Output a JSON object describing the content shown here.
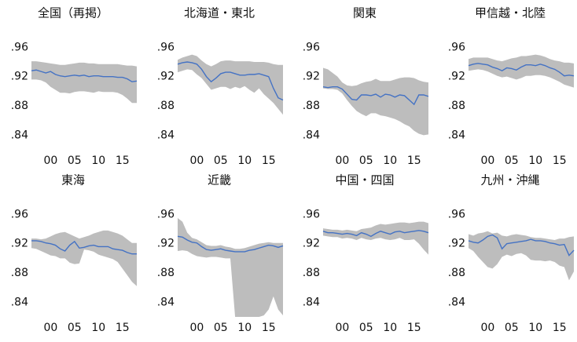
{
  "chart_data": [
    {
      "type": "line",
      "title": "全国（再掲）",
      "color": "#4472c4",
      "band_color": "#bdbdbd",
      "x": [
        1996,
        1997,
        1998,
        1999,
        2000,
        2001,
        2002,
        2003,
        2004,
        2005,
        2006,
        2007,
        2008,
        2009,
        2010,
        2011,
        2012,
        2013,
        2014,
        2015,
        2016,
        2017,
        2018
      ],
      "values": [
        0.928,
        0.929,
        0.927,
        0.925,
        0.927,
        0.923,
        0.921,
        0.92,
        0.921,
        0.922,
        0.921,
        0.922,
        0.92,
        0.921,
        0.921,
        0.92,
        0.92,
        0.92,
        0.919,
        0.919,
        0.917,
        0.913,
        0.914
      ],
      "band_high": [
        0.941,
        0.941,
        0.94,
        0.939,
        0.938,
        0.937,
        0.936,
        0.936,
        0.937,
        0.938,
        0.939,
        0.939,
        0.938,
        0.938,
        0.937,
        0.937,
        0.937,
        0.937,
        0.937,
        0.936,
        0.935,
        0.935,
        0.934
      ],
      "band_low": [
        0.916,
        0.916,
        0.915,
        0.912,
        0.906,
        0.902,
        0.898,
        0.898,
        0.897,
        0.899,
        0.9,
        0.9,
        0.899,
        0.898,
        0.9,
        0.899,
        0.899,
        0.899,
        0.898,
        0.895,
        0.89,
        0.884,
        0.884
      ],
      "xlim": [
        1996,
        2018
      ],
      "xticks": [
        {
          "value": 2000,
          "label": "00"
        },
        {
          "value": 2005,
          "label": "05"
        },
        {
          "value": 2010,
          "label": "10"
        },
        {
          "value": 2015,
          "label": "15"
        }
      ],
      "ylim": [
        0.82,
        0.97
      ],
      "yticks": [
        {
          "value": 0.84,
          "label": ".84"
        },
        {
          "value": 0.88,
          "label": ".88"
        },
        {
          "value": 0.92,
          "label": ".92"
        },
        {
          "value": 0.96,
          "label": ".96"
        }
      ]
    },
    {
      "type": "line",
      "title": "北海道・東北",
      "color": "#4472c4",
      "band_color": "#bdbdbd",
      "x": [
        1996,
        1997,
        1998,
        1999,
        2000,
        2001,
        2002,
        2003,
        2004,
        2005,
        2006,
        2007,
        2008,
        2009,
        2010,
        2011,
        2012,
        2013,
        2014,
        2015,
        2016,
        2017,
        2018
      ],
      "values": [
        0.937,
        0.939,
        0.94,
        0.939,
        0.937,
        0.93,
        0.92,
        0.913,
        0.918,
        0.924,
        0.926,
        0.926,
        0.924,
        0.922,
        0.922,
        0.923,
        0.923,
        0.924,
        0.922,
        0.92,
        0.904,
        0.891,
        0.888
      ],
      "band_high": [
        0.943,
        0.946,
        0.948,
        0.95,
        0.948,
        0.942,
        0.937,
        0.934,
        0.937,
        0.941,
        0.942,
        0.942,
        0.941,
        0.941,
        0.941,
        0.941,
        0.94,
        0.94,
        0.94,
        0.939,
        0.937,
        0.936,
        0.936
      ],
      "band_low": [
        0.926,
        0.928,
        0.93,
        0.929,
        0.923,
        0.918,
        0.91,
        0.902,
        0.904,
        0.906,
        0.906,
        0.903,
        0.906,
        0.904,
        0.907,
        0.902,
        0.898,
        0.904,
        0.896,
        0.89,
        0.884,
        0.876,
        0.868
      ],
      "xlim": [
        1996,
        2018
      ],
      "xticks": [
        {
          "value": 2000,
          "label": "00"
        },
        {
          "value": 2005,
          "label": "05"
        },
        {
          "value": 2010,
          "label": "10"
        },
        {
          "value": 2015,
          "label": "15"
        }
      ],
      "ylim": [
        0.82,
        0.97
      ],
      "yticks": [
        {
          "value": 0.84,
          "label": ".84"
        },
        {
          "value": 0.88,
          "label": ".88"
        },
        {
          "value": 0.92,
          "label": ".92"
        },
        {
          "value": 0.96,
          "label": ".96"
        }
      ]
    },
    {
      "type": "line",
      "title": "関東",
      "color": "#4472c4",
      "band_color": "#bdbdbd",
      "x": [
        1996,
        1997,
        1998,
        1999,
        2000,
        2001,
        2002,
        2003,
        2004,
        2005,
        2006,
        2007,
        2008,
        2009,
        2010,
        2011,
        2012,
        2013,
        2014,
        2015,
        2016,
        2017,
        2018
      ],
      "values": [
        0.906,
        0.905,
        0.906,
        0.906,
        0.903,
        0.896,
        0.889,
        0.888,
        0.895,
        0.895,
        0.894,
        0.896,
        0.892,
        0.896,
        0.895,
        0.892,
        0.895,
        0.894,
        0.888,
        0.882,
        0.895,
        0.895,
        0.893
      ],
      "band_high": [
        0.932,
        0.93,
        0.925,
        0.92,
        0.912,
        0.908,
        0.907,
        0.908,
        0.911,
        0.913,
        0.914,
        0.917,
        0.914,
        0.914,
        0.914,
        0.916,
        0.918,
        0.919,
        0.919,
        0.918,
        0.915,
        0.913,
        0.912
      ],
      "band_low": [
        0.904,
        0.903,
        0.903,
        0.902,
        0.897,
        0.888,
        0.88,
        0.873,
        0.869,
        0.866,
        0.87,
        0.87,
        0.867,
        0.866,
        0.864,
        0.862,
        0.859,
        0.855,
        0.852,
        0.846,
        0.842,
        0.84,
        0.841
      ],
      "xlim": [
        1996,
        2018
      ],
      "xticks": [
        {
          "value": 2000,
          "label": "00"
        },
        {
          "value": 2005,
          "label": "05"
        },
        {
          "value": 2010,
          "label": "10"
        },
        {
          "value": 2015,
          "label": "15"
        }
      ],
      "ylim": [
        0.82,
        0.97
      ],
      "yticks": [
        {
          "value": 0.84,
          "label": ".84"
        },
        {
          "value": 0.88,
          "label": ".88"
        },
        {
          "value": 0.92,
          "label": ".92"
        },
        {
          "value": 0.96,
          "label": ".96"
        }
      ]
    },
    {
      "type": "line",
      "title": "甲信越・北陸",
      "color": "#4472c4",
      "band_color": "#bdbdbd",
      "x": [
        1996,
        1997,
        1998,
        1999,
        2000,
        2001,
        2002,
        2003,
        2004,
        2005,
        2006,
        2007,
        2008,
        2009,
        2010,
        2011,
        2012,
        2013,
        2014,
        2015,
        2016,
        2017,
        2018
      ],
      "values": [
        0.935,
        0.937,
        0.938,
        0.937,
        0.936,
        0.933,
        0.931,
        0.928,
        0.932,
        0.931,
        0.929,
        0.933,
        0.936,
        0.936,
        0.935,
        0.937,
        0.935,
        0.932,
        0.93,
        0.926,
        0.921,
        0.922,
        0.921
      ],
      "band_high": [
        0.944,
        0.946,
        0.946,
        0.946,
        0.946,
        0.944,
        0.942,
        0.941,
        0.943,
        0.945,
        0.946,
        0.948,
        0.948,
        0.949,
        0.95,
        0.949,
        0.947,
        0.944,
        0.942,
        0.941,
        0.939,
        0.939,
        0.938
      ],
      "band_low": [
        0.928,
        0.929,
        0.93,
        0.929,
        0.927,
        0.924,
        0.921,
        0.919,
        0.92,
        0.918,
        0.916,
        0.918,
        0.921,
        0.921,
        0.922,
        0.922,
        0.921,
        0.919,
        0.916,
        0.913,
        0.909,
        0.907,
        0.905
      ],
      "xlim": [
        1996,
        2018
      ],
      "xticks": [
        {
          "value": 2000,
          "label": "00"
        },
        {
          "value": 2005,
          "label": "05"
        },
        {
          "value": 2010,
          "label": "10"
        },
        {
          "value": 2015,
          "label": "15"
        }
      ],
      "ylim": [
        0.82,
        0.97
      ],
      "yticks": [
        {
          "value": 0.84,
          "label": ".84"
        },
        {
          "value": 0.88,
          "label": ".88"
        },
        {
          "value": 0.92,
          "label": ".92"
        },
        {
          "value": 0.96,
          "label": ".96"
        }
      ]
    },
    {
      "type": "line",
      "title": "東海",
      "color": "#4472c4",
      "band_color": "#bdbdbd",
      "x": [
        1996,
        1997,
        1998,
        1999,
        2000,
        2001,
        2002,
        2003,
        2004,
        2005,
        2006,
        2007,
        2008,
        2009,
        2010,
        2011,
        2012,
        2013,
        2014,
        2015,
        2016,
        2017,
        2018
      ],
      "values": [
        0.924,
        0.924,
        0.923,
        0.921,
        0.92,
        0.918,
        0.913,
        0.91,
        0.918,
        0.923,
        0.914,
        0.915,
        0.917,
        0.918,
        0.916,
        0.916,
        0.916,
        0.913,
        0.912,
        0.911,
        0.908,
        0.906,
        0.906
      ],
      "band_high": [
        0.927,
        0.927,
        0.926,
        0.927,
        0.93,
        0.933,
        0.935,
        0.936,
        0.933,
        0.93,
        0.927,
        0.929,
        0.931,
        0.934,
        0.936,
        0.938,
        0.938,
        0.936,
        0.934,
        0.931,
        0.926,
        0.921,
        0.921
      ],
      "band_low": [
        0.914,
        0.913,
        0.91,
        0.907,
        0.904,
        0.903,
        0.9,
        0.9,
        0.894,
        0.892,
        0.893,
        0.912,
        0.911,
        0.909,
        0.905,
        0.903,
        0.901,
        0.899,
        0.895,
        0.886,
        0.877,
        0.868,
        0.862
      ],
      "xlim": [
        1996,
        2018
      ],
      "xticks": [
        {
          "value": 2000,
          "label": "00"
        },
        {
          "value": 2005,
          "label": "05"
        },
        {
          "value": 2010,
          "label": "10"
        },
        {
          "value": 2015,
          "label": "15"
        }
      ],
      "ylim": [
        0.82,
        0.97
      ],
      "yticks": [
        {
          "value": 0.84,
          "label": ".84"
        },
        {
          "value": 0.88,
          "label": ".88"
        },
        {
          "value": 0.92,
          "label": ".92"
        },
        {
          "value": 0.96,
          "label": ".96"
        }
      ]
    },
    {
      "type": "line",
      "title": "近畿",
      "color": "#4472c4",
      "band_color": "#bdbdbd",
      "x": [
        1996,
        1997,
        1998,
        1999,
        2000,
        2001,
        2002,
        2003,
        2004,
        2005,
        2006,
        2007,
        2008,
        2009,
        2010,
        2011,
        2012,
        2013,
        2014,
        2015,
        2016,
        2017,
        2018
      ],
      "values": [
        0.93,
        0.929,
        0.925,
        0.922,
        0.921,
        0.916,
        0.912,
        0.911,
        0.912,
        0.913,
        0.911,
        0.91,
        0.909,
        0.909,
        0.909,
        0.911,
        0.912,
        0.914,
        0.916,
        0.918,
        0.917,
        0.915,
        0.917
      ],
      "band_high": [
        0.955,
        0.95,
        0.935,
        0.928,
        0.926,
        0.922,
        0.918,
        0.917,
        0.917,
        0.918,
        0.916,
        0.915,
        0.913,
        0.913,
        0.914,
        0.916,
        0.918,
        0.92,
        0.921,
        0.922,
        0.921,
        0.921,
        0.921
      ],
      "band_low": [
        0.91,
        0.911,
        0.91,
        0.906,
        0.903,
        0.902,
        0.901,
        0.902,
        0.902,
        0.901,
        0.9,
        0.9,
        0.82,
        0.82,
        0.82,
        0.82,
        0.82,
        0.82,
        0.822,
        0.83,
        0.848,
        0.83,
        0.822
      ],
      "xlim": [
        1996,
        2018
      ],
      "xticks": [
        {
          "value": 2000,
          "label": "00"
        },
        {
          "value": 2005,
          "label": "05"
        },
        {
          "value": 2010,
          "label": "10"
        },
        {
          "value": 2015,
          "label": "15"
        }
      ],
      "ylim": [
        0.82,
        0.97
      ],
      "yticks": [
        {
          "value": 0.84,
          "label": ".84"
        },
        {
          "value": 0.88,
          "label": ".88"
        },
        {
          "value": 0.92,
          "label": ".92"
        },
        {
          "value": 0.96,
          "label": ".96"
        }
      ]
    },
    {
      "type": "line",
      "title": "中国・四国",
      "color": "#4472c4",
      "band_color": "#bdbdbd",
      "x": [
        1996,
        1997,
        1998,
        1999,
        2000,
        2001,
        2002,
        2003,
        2004,
        2005,
        2006,
        2007,
        2008,
        2009,
        2010,
        2011,
        2012,
        2013,
        2014,
        2015,
        2016,
        2017,
        2018
      ],
      "values": [
        0.937,
        0.935,
        0.935,
        0.934,
        0.933,
        0.934,
        0.933,
        0.931,
        0.935,
        0.933,
        0.93,
        0.934,
        0.937,
        0.935,
        0.933,
        0.936,
        0.937,
        0.935,
        0.936,
        0.937,
        0.938,
        0.937,
        0.935
      ],
      "band_high": [
        0.941,
        0.94,
        0.939,
        0.939,
        0.938,
        0.939,
        0.938,
        0.937,
        0.94,
        0.941,
        0.942,
        0.945,
        0.947,
        0.946,
        0.947,
        0.948,
        0.949,
        0.949,
        0.948,
        0.949,
        0.95,
        0.95,
        0.948
      ],
      "band_low": [
        0.931,
        0.93,
        0.929,
        0.929,
        0.927,
        0.928,
        0.927,
        0.925,
        0.928,
        0.926,
        0.925,
        0.927,
        0.928,
        0.926,
        0.925,
        0.926,
        0.928,
        0.925,
        0.925,
        0.926,
        0.92,
        0.912,
        0.905
      ],
      "xlim": [
        1996,
        2018
      ],
      "xticks": [
        {
          "value": 2000,
          "label": "00"
        },
        {
          "value": 2005,
          "label": "05"
        },
        {
          "value": 2010,
          "label": "10"
        },
        {
          "value": 2015,
          "label": "15"
        }
      ],
      "ylim": [
        0.82,
        0.97
      ],
      "yticks": [
        {
          "value": 0.84,
          "label": ".84"
        },
        {
          "value": 0.88,
          "label": ".88"
        },
        {
          "value": 0.92,
          "label": ".92"
        },
        {
          "value": 0.96,
          "label": ".96"
        }
      ]
    },
    {
      "type": "line",
      "title": "九州・沖縄",
      "color": "#4472c4",
      "band_color": "#bdbdbd",
      "x": [
        1996,
        1997,
        1998,
        1999,
        2000,
        2001,
        2002,
        2003,
        2004,
        2005,
        2006,
        2007,
        2008,
        2009,
        2010,
        2011,
        2012,
        2013,
        2014,
        2015,
        2016,
        2017,
        2018
      ],
      "values": [
        0.924,
        0.922,
        0.921,
        0.925,
        0.93,
        0.932,
        0.928,
        0.913,
        0.92,
        0.921,
        0.922,
        0.923,
        0.924,
        0.926,
        0.924,
        0.924,
        0.923,
        0.921,
        0.92,
        0.918,
        0.919,
        0.904,
        0.911
      ],
      "band_high": [
        0.933,
        0.931,
        0.934,
        0.935,
        0.937,
        0.934,
        0.935,
        0.931,
        0.93,
        0.932,
        0.933,
        0.932,
        0.931,
        0.929,
        0.928,
        0.928,
        0.927,
        0.926,
        0.925,
        0.927,
        0.927,
        0.929,
        0.93
      ],
      "band_low": [
        0.914,
        0.91,
        0.902,
        0.895,
        0.888,
        0.886,
        0.892,
        0.902,
        0.905,
        0.903,
        0.906,
        0.907,
        0.904,
        0.898,
        0.897,
        0.897,
        0.896,
        0.897,
        0.895,
        0.89,
        0.888,
        0.87,
        0.882
      ],
      "xlim": [
        1996,
        2018
      ],
      "xticks": [
        {
          "value": 2000,
          "label": "00"
        },
        {
          "value": 2005,
          "label": "05"
        },
        {
          "value": 2010,
          "label": "10"
        },
        {
          "value": 2015,
          "label": "15"
        }
      ],
      "ylim": [
        0.82,
        0.97
      ],
      "yticks": [
        {
          "value": 0.84,
          "label": ".84"
        },
        {
          "value": 0.88,
          "label": ".88"
        },
        {
          "value": 0.92,
          "label": ".92"
        },
        {
          "value": 0.96,
          "label": ".96"
        }
      ]
    }
  ]
}
